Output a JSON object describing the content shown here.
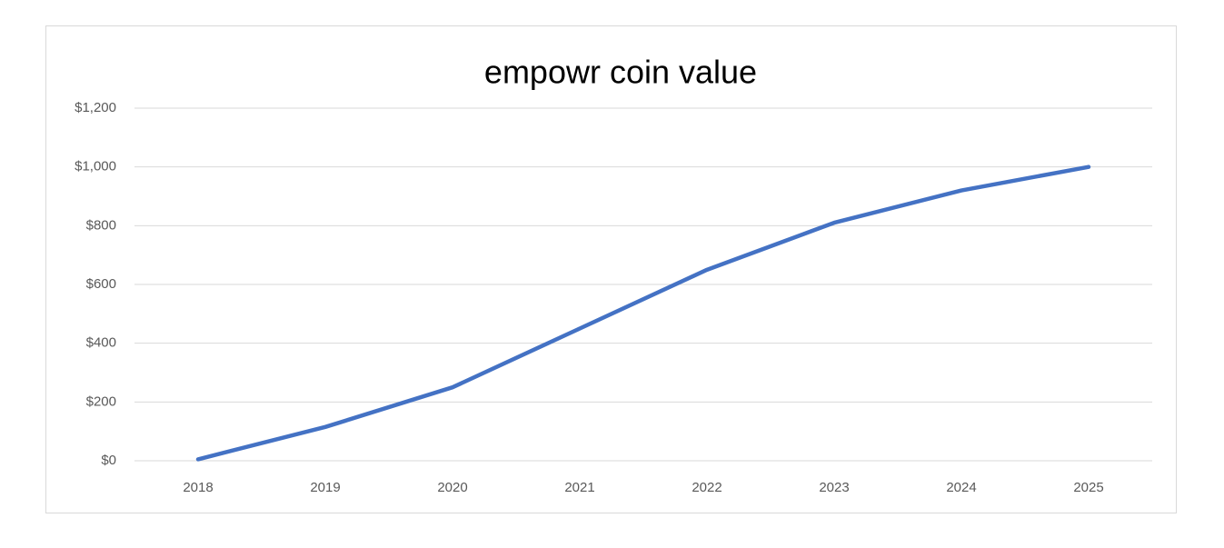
{
  "chart_data": {
    "type": "line",
    "title": "empowr coin value",
    "categories": [
      "2018",
      "2019",
      "2020",
      "2021",
      "2022",
      "2023",
      "2024",
      "2025"
    ],
    "series": [
      {
        "name": "empowr coin value",
        "color": "#4472c4",
        "values": [
          5,
          115,
          250,
          450,
          650,
          810,
          920,
          1000
        ]
      }
    ],
    "ylim": [
      0,
      1200
    ],
    "yticks": [
      {
        "value": 0,
        "label": "$0"
      },
      {
        "value": 200,
        "label": "$200"
      },
      {
        "value": 400,
        "label": "$400"
      },
      {
        "value": 600,
        "label": "$600"
      },
      {
        "value": 800,
        "label": "$800"
      },
      {
        "value": 1000,
        "label": "$1,000"
      },
      {
        "value": 1200,
        "label": "$1,200"
      }
    ],
    "grid": true
  }
}
